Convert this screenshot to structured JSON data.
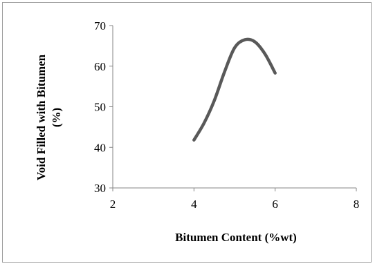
{
  "chart_data": {
    "type": "line",
    "title": "",
    "xlabel": "Bitumen Content (%wt)",
    "ylabel_lines": [
      "Void Filled with Bitumen",
      "(%)"
    ],
    "xlim": [
      2,
      8
    ],
    "ylim": [
      30,
      70
    ],
    "xticks": [
      2,
      4,
      6,
      8
    ],
    "yticks": [
      30,
      40,
      50,
      60,
      70
    ],
    "grid": false,
    "legend": "none",
    "series": [
      {
        "color": "#595959",
        "x": [
          4.0,
          4.25,
          4.5,
          4.75,
          5.0,
          5.25,
          5.5,
          5.75,
          6.0
        ],
        "y": [
          41.8,
          46.0,
          51.5,
          58.5,
          64.5,
          66.5,
          66.0,
          63.0,
          58.3
        ]
      }
    ]
  }
}
